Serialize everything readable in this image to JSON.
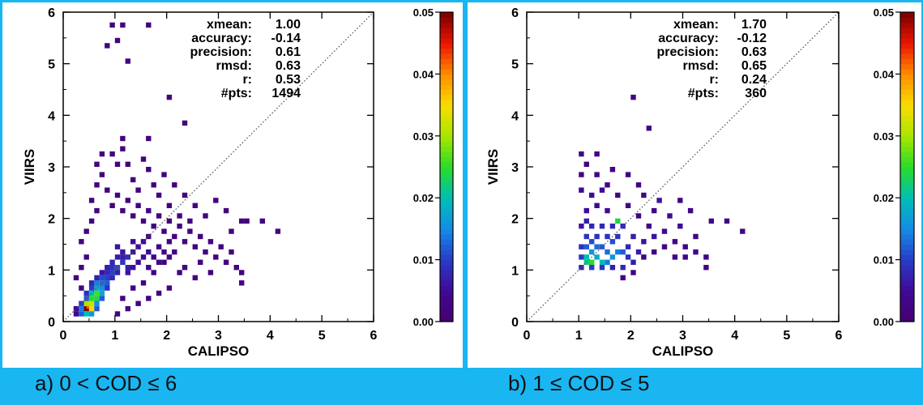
{
  "captions": [
    "a) 0 < COD ≤ 6",
    "b) 1 ≤ COD ≤ 5"
  ],
  "chart_data": [
    {
      "type": "heatmap",
      "xlabel": "CALIPSO",
      "ylabel": "VIIRS",
      "xlim": [
        0,
        6
      ],
      "ylim": [
        0,
        6
      ],
      "xticks": [
        "0",
        "1",
        "2",
        "3",
        "4",
        "5",
        "6"
      ],
      "yticks": [
        "0",
        "1",
        "2",
        "3",
        "4",
        "5",
        "6"
      ],
      "one_to_one_line": true,
      "bin_size": 0.1,
      "stats": [
        {
          "label": "xmean:",
          "value": "1.00"
        },
        {
          "label": "accuracy:",
          "value": "-0.14"
        },
        {
          "label": "precision:",
          "value": "0.61"
        },
        {
          "label": "rmsd:",
          "value": "0.63"
        },
        {
          "label": "r:",
          "value": "0.53"
        },
        {
          "label": "#pts:",
          "value": "1494"
        }
      ],
      "colorbar": {
        "range": [
          0,
          0.05
        ],
        "ticks": [
          "0.00",
          "0.01",
          "0.02",
          "0.03",
          "0.04",
          "0.05"
        ]
      },
      "cells": [
        [
          0.4,
          0.2,
          0.05
        ],
        [
          0.45,
          0.25,
          0.042
        ],
        [
          0.5,
          0.2,
          0.035
        ],
        [
          0.4,
          0.3,
          0.03
        ],
        [
          0.5,
          0.3,
          0.032
        ],
        [
          0.5,
          0.4,
          0.025
        ],
        [
          0.6,
          0.4,
          0.024
        ],
        [
          0.6,
          0.5,
          0.026
        ],
        [
          0.5,
          0.5,
          0.02
        ],
        [
          0.7,
          0.5,
          0.018
        ],
        [
          0.6,
          0.6,
          0.018
        ],
        [
          0.7,
          0.6,
          0.015
        ],
        [
          0.6,
          0.7,
          0.014
        ],
        [
          0.7,
          0.7,
          0.013
        ],
        [
          0.8,
          0.7,
          0.012
        ],
        [
          0.7,
          0.8,
          0.011
        ],
        [
          0.8,
          0.8,
          0.01
        ],
        [
          0.9,
          0.9,
          0.01
        ],
        [
          1.0,
          1.0,
          0.011
        ],
        [
          1.1,
          1.1,
          0.009
        ],
        [
          0.9,
          1.1,
          0.008
        ],
        [
          1.2,
          1.2,
          0.008
        ],
        [
          1.0,
          1.2,
          0.007
        ],
        [
          1.3,
          1.3,
          0.006
        ],
        [
          1.1,
          1.3,
          0.006
        ],
        [
          1.2,
          1.0,
          0.007
        ],
        [
          1.4,
          1.1,
          0.005
        ],
        [
          0.3,
          0.1,
          0.012
        ],
        [
          0.4,
          0.1,
          0.02
        ],
        [
          0.5,
          0.1,
          0.016
        ],
        [
          0.3,
          0.2,
          0.014
        ],
        [
          0.6,
          0.2,
          0.012
        ],
        [
          0.3,
          0.3,
          0.01
        ],
        [
          0.4,
          0.4,
          0.012
        ],
        [
          0.6,
          0.3,
          0.015
        ],
        [
          0.7,
          0.4,
          0.012
        ],
        [
          0.8,
          0.6,
          0.009
        ],
        [
          0.5,
          0.6,
          0.01
        ],
        [
          0.8,
          0.9,
          0.008
        ],
        [
          0.9,
          0.8,
          0.008
        ],
        [
          1.0,
          0.9,
          0.007
        ],
        [
          1.2,
          0.9,
          0.006
        ],
        [
          1.3,
          1.0,
          0.006
        ],
        [
          1.5,
          1.2,
          0.005
        ],
        [
          0.9,
          1.0,
          0.009
        ],
        [
          1.1,
          1.2,
          0.007
        ],
        [
          0.7,
          0.9,
          0.006
        ],
        [
          1.0,
          1.4,
          0.006
        ],
        [
          1.4,
          1.4,
          0.005
        ],
        [
          1.6,
          1.3,
          0.005
        ],
        [
          0.8,
          1.0,
          0.007
        ],
        [
          0.6,
          0.8,
          0.007
        ],
        [
          0.5,
          0.7,
          0.008
        ],
        [
          0.4,
          0.5,
          0.009
        ],
        [
          1.3,
          1.5,
          0.005
        ],
        [
          0.2,
          0.1,
          0.004
        ],
        [
          0.2,
          0.2,
          0.004
        ],
        [
          0.3,
          0.6,
          0.002
        ],
        [
          0.2,
          0.8,
          0.002
        ],
        [
          0.3,
          1.0,
          0.002
        ],
        [
          0.4,
          1.2,
          0.002
        ],
        [
          0.3,
          1.5,
          0.002
        ],
        [
          0.4,
          1.7,
          0.002
        ],
        [
          0.5,
          1.9,
          0.002
        ],
        [
          0.6,
          2.1,
          0.002
        ],
        [
          0.5,
          2.3,
          0.002
        ],
        [
          0.6,
          2.6,
          0.002
        ],
        [
          0.7,
          2.8,
          0.002
        ],
        [
          0.6,
          3.0,
          0.002
        ],
        [
          0.7,
          3.2,
          0.002
        ],
        [
          0.8,
          2.5,
          0.002
        ],
        [
          0.9,
          2.2,
          0.002
        ],
        [
          1.0,
          2.4,
          0.002
        ],
        [
          1.1,
          2.1,
          0.002
        ],
        [
          1.2,
          2.3,
          0.002
        ],
        [
          1.3,
          2.0,
          0.002
        ],
        [
          1.4,
          2.2,
          0.002
        ],
        [
          1.5,
          1.9,
          0.002
        ],
        [
          1.6,
          2.1,
          0.002
        ],
        [
          1.7,
          1.8,
          0.002
        ],
        [
          1.8,
          2.0,
          0.002
        ],
        [
          1.9,
          1.7,
          0.002
        ],
        [
          2.0,
          1.9,
          0.002
        ],
        [
          2.1,
          1.6,
          0.002
        ],
        [
          2.2,
          1.8,
          0.002
        ],
        [
          2.3,
          1.5,
          0.002
        ],
        [
          2.4,
          1.7,
          0.002
        ],
        [
          2.5,
          1.4,
          0.002
        ],
        [
          2.6,
          1.6,
          0.002
        ],
        [
          2.7,
          1.3,
          0.002
        ],
        [
          2.8,
          1.5,
          0.002
        ],
        [
          2.9,
          1.2,
          0.002
        ],
        [
          3.0,
          1.4,
          0.002
        ],
        [
          3.1,
          1.1,
          0.002
        ],
        [
          3.2,
          1.3,
          0.002
        ],
        [
          3.3,
          1.0,
          0.002
        ],
        [
          3.4,
          0.7,
          0.002
        ],
        [
          3.4,
          0.9,
          0.002
        ],
        [
          3.2,
          1.7,
          0.002
        ],
        [
          3.4,
          1.9,
          0.002
        ],
        [
          3.5,
          1.9,
          0.002
        ],
        [
          3.8,
          1.9,
          0.002
        ],
        [
          4.1,
          1.7,
          0.002
        ],
        [
          3.1,
          2.1,
          0.002
        ],
        [
          2.9,
          2.3,
          0.002
        ],
        [
          2.7,
          2.0,
          0.002
        ],
        [
          2.5,
          2.2,
          0.002
        ],
        [
          2.3,
          2.4,
          0.002
        ],
        [
          2.1,
          2.6,
          0.002
        ],
        [
          1.9,
          2.8,
          0.002
        ],
        [
          1.7,
          2.6,
          0.002
        ],
        [
          1.6,
          2.9,
          0.002
        ],
        [
          1.5,
          3.1,
          0.002
        ],
        [
          1.3,
          2.7,
          0.002
        ],
        [
          1.2,
          3.0,
          0.002
        ],
        [
          1.1,
          3.3,
          0.002
        ],
        [
          1.0,
          3.0,
          0.002
        ],
        [
          0.9,
          3.2,
          0.002
        ],
        [
          1.4,
          2.5,
          0.002
        ],
        [
          1.8,
          2.4,
          0.002
        ],
        [
          2.0,
          2.2,
          0.002
        ],
        [
          2.2,
          2.0,
          0.002
        ],
        [
          2.4,
          1.9,
          0.002
        ],
        [
          2.6,
          1.1,
          0.002
        ],
        [
          2.2,
          0.9,
          0.002
        ],
        [
          2.0,
          0.6,
          0.002
        ],
        [
          1.8,
          0.5,
          0.002
        ],
        [
          1.6,
          0.4,
          0.002
        ],
        [
          1.4,
          0.3,
          0.002
        ],
        [
          1.2,
          0.2,
          0.002
        ],
        [
          1.0,
          0.1,
          0.002
        ],
        [
          1.1,
          0.4,
          0.002
        ],
        [
          1.3,
          0.6,
          0.002
        ],
        [
          1.5,
          0.7,
          0.002
        ],
        [
          1.7,
          0.9,
          0.002
        ],
        [
          1.9,
          1.1,
          0.002
        ],
        [
          2.1,
          1.3,
          0.002
        ],
        [
          2.3,
          1.0,
          0.002
        ],
        [
          2.5,
          0.8,
          0.002
        ],
        [
          2.8,
          0.9,
          0.002
        ],
        [
          1.6,
          1.6,
          0.003
        ],
        [
          1.8,
          1.4,
          0.003
        ],
        [
          2.0,
          1.5,
          0.003
        ],
        [
          1.7,
          1.2,
          0.003
        ],
        [
          1.9,
          1.3,
          0.003
        ],
        [
          1.5,
          1.5,
          0.004
        ],
        [
          1.6,
          1.0,
          0.004
        ],
        [
          1.8,
          1.1,
          0.003
        ],
        [
          2.0,
          1.2,
          0.003
        ],
        [
          0.9,
          5.7,
          0.002
        ],
        [
          1.1,
          5.7,
          0.002
        ],
        [
          1.6,
          5.7,
          0.002
        ],
        [
          0.8,
          5.3,
          0.002
        ],
        [
          1.0,
          5.4,
          0.002
        ],
        [
          1.2,
          5.0,
          0.002
        ],
        [
          2.0,
          4.3,
          0.002
        ],
        [
          2.3,
          3.8,
          0.002
        ],
        [
          1.1,
          3.5,
          0.002
        ],
        [
          1.6,
          3.5,
          0.002
        ]
      ]
    },
    {
      "type": "heatmap",
      "xlabel": "CALIPSO",
      "ylabel": "VIIRS",
      "xlim": [
        0,
        6
      ],
      "ylim": [
        0,
        6
      ],
      "xticks": [
        "0",
        "1",
        "2",
        "3",
        "4",
        "5",
        "6"
      ],
      "yticks": [
        "0",
        "1",
        "2",
        "3",
        "4",
        "5",
        "6"
      ],
      "one_to_one_line": true,
      "bin_size": 0.1,
      "stats": [
        {
          "label": "xmean:",
          "value": "1.70"
        },
        {
          "label": "accuracy:",
          "value": "-0.12"
        },
        {
          "label": "precision:",
          "value": "0.63"
        },
        {
          "label": "rmsd:",
          "value": "0.65"
        },
        {
          "label": "r:",
          "value": "0.24"
        },
        {
          "label": "#pts:",
          "value": "360"
        }
      ],
      "colorbar": {
        "range": [
          0,
          0.05
        ],
        "ticks": [
          "0.00",
          "0.01",
          "0.02",
          "0.03",
          "0.04",
          "0.05"
        ]
      },
      "cells": [
        [
          1.1,
          1.1,
          0.022
        ],
        [
          1.2,
          1.1,
          0.025
        ],
        [
          1.1,
          1.2,
          0.02
        ],
        [
          1.3,
          1.2,
          0.018
        ],
        [
          1.2,
          1.3,
          0.016
        ],
        [
          1.4,
          1.1,
          0.02
        ],
        [
          1.5,
          1.1,
          0.014
        ],
        [
          1.6,
          1.2,
          0.016
        ],
        [
          1.7,
          1.3,
          0.014
        ],
        [
          1.7,
          1.9,
          0.024
        ],
        [
          1.8,
          1.3,
          0.012
        ],
        [
          1.3,
          1.4,
          0.013
        ],
        [
          1.4,
          1.4,
          0.012
        ],
        [
          1.5,
          1.3,
          0.013
        ],
        [
          1.6,
          1.5,
          0.011
        ],
        [
          1.2,
          1.5,
          0.011
        ],
        [
          1.1,
          1.4,
          0.012
        ],
        [
          1.1,
          1.6,
          0.009
        ],
        [
          1.3,
          1.6,
          0.009
        ],
        [
          1.5,
          1.6,
          0.009
        ],
        [
          1.7,
          1.6,
          0.009
        ],
        [
          1.8,
          1.8,
          0.008
        ],
        [
          1.6,
          1.8,
          0.008
        ],
        [
          1.4,
          1.8,
          0.008
        ],
        [
          1.2,
          1.8,
          0.008
        ],
        [
          1.1,
          1.9,
          0.007
        ],
        [
          1.9,
          1.4,
          0.008
        ],
        [
          1.9,
          1.2,
          0.009
        ],
        [
          2.0,
          1.1,
          0.007
        ],
        [
          1.8,
          1.0,
          0.008
        ],
        [
          1.6,
          1.0,
          0.007
        ],
        [
          1.4,
          1.0,
          0.009
        ],
        [
          1.2,
          1.0,
          0.01
        ],
        [
          1.0,
          1.0,
          0.008
        ],
        [
          1.0,
          1.2,
          0.01
        ],
        [
          1.0,
          1.4,
          0.009
        ],
        [
          2.1,
          1.3,
          0.007
        ],
        [
          2.0,
          1.6,
          0.007
        ],
        [
          2.2,
          1.5,
          0.006
        ],
        [
          2.4,
          1.6,
          0.006
        ],
        [
          2.6,
          1.7,
          0.005
        ],
        [
          2.5,
          2.3,
          0.006
        ],
        [
          2.7,
          2.0,
          0.005
        ],
        [
          2.9,
          1.8,
          0.005
        ],
        [
          1.0,
          1.8,
          0.006
        ],
        [
          1.1,
          2.1,
          0.005
        ],
        [
          1.3,
          2.2,
          0.005
        ],
        [
          1.5,
          2.1,
          0.005
        ],
        [
          1.2,
          2.4,
          0.005
        ],
        [
          1.4,
          2.5,
          0.005
        ],
        [
          1.0,
          2.5,
          0.005
        ],
        [
          1.0,
          2.8,
          0.003
        ],
        [
          1.1,
          3.0,
          0.002
        ],
        [
          1.3,
          2.8,
          0.003
        ],
        [
          1.5,
          2.6,
          0.003
        ],
        [
          1.7,
          2.4,
          0.003
        ],
        [
          1.9,
          2.2,
          0.003
        ],
        [
          2.1,
          2.0,
          0.003
        ],
        [
          2.3,
          1.8,
          0.003
        ],
        [
          2.1,
          2.6,
          0.003
        ],
        [
          1.9,
          2.8,
          0.003
        ],
        [
          1.6,
          2.9,
          0.003
        ],
        [
          2.2,
          2.4,
          0.003
        ],
        [
          2.4,
          2.1,
          0.003
        ],
        [
          2.8,
          1.5,
          0.003
        ],
        [
          3.0,
          1.4,
          0.003
        ],
        [
          3.2,
          1.3,
          0.003
        ],
        [
          3.4,
          1.2,
          0.003
        ],
        [
          3.4,
          1.0,
          0.003
        ],
        [
          3.0,
          1.2,
          0.003
        ],
        [
          2.8,
          1.2,
          0.003
        ],
        [
          2.6,
          1.4,
          0.003
        ],
        [
          2.4,
          1.3,
          0.003
        ],
        [
          2.2,
          1.2,
          0.003
        ],
        [
          2.0,
          0.9,
          0.003
        ],
        [
          1.8,
          0.8,
          0.003
        ],
        [
          3.2,
          1.6,
          0.003
        ],
        [
          3.5,
          1.9,
          0.003
        ],
        [
          3.8,
          1.9,
          0.003
        ],
        [
          4.1,
          1.7,
          0.003
        ],
        [
          3.1,
          2.1,
          0.003
        ],
        [
          2.9,
          2.3,
          0.003
        ],
        [
          2.3,
          3.7,
          0.003
        ],
        [
          2.0,
          4.3,
          0.003
        ],
        [
          1.3,
          3.2,
          0.003
        ],
        [
          1.0,
          3.2,
          0.003
        ]
      ]
    }
  ]
}
